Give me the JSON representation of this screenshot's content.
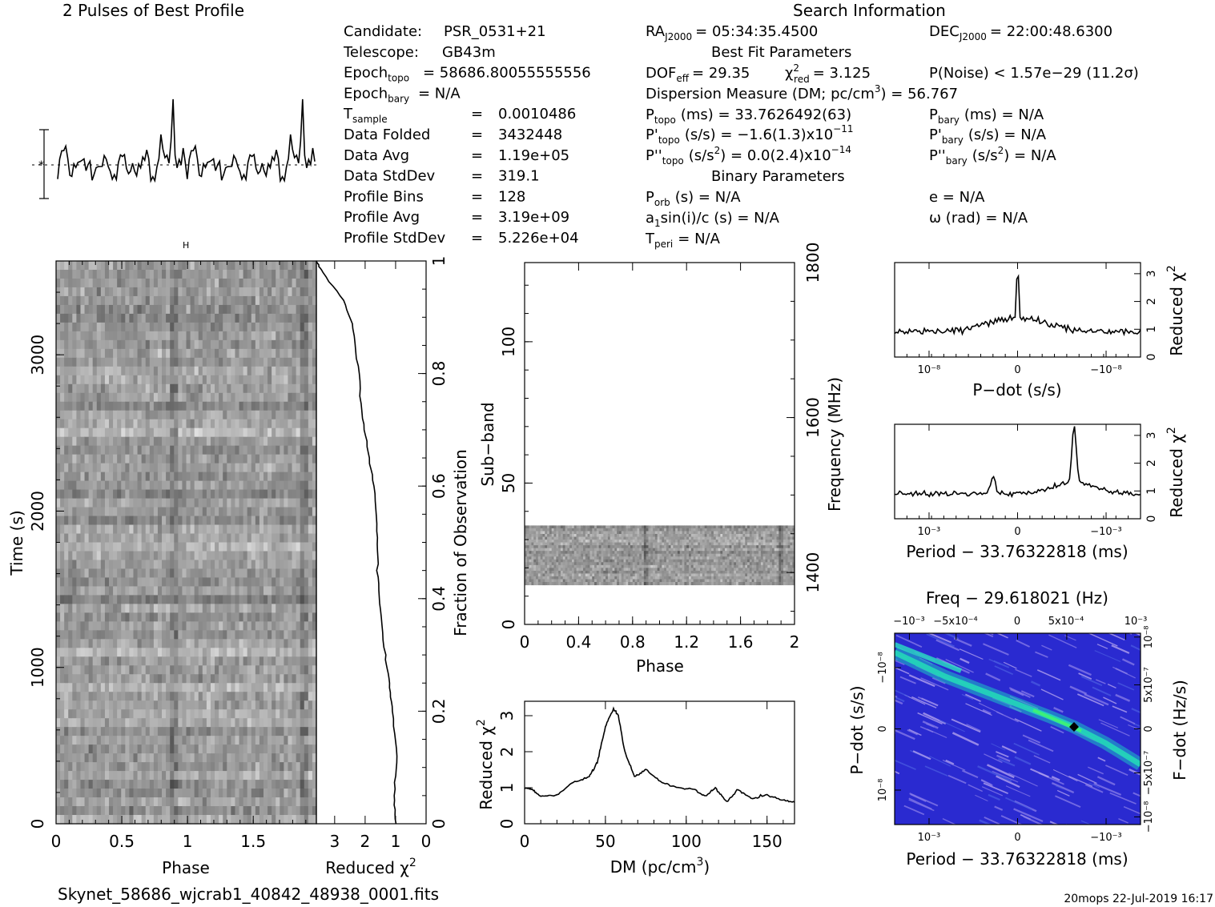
{
  "header": {
    "profile_title": "2 Pulses of Best Profile",
    "search_title": "Search Information",
    "footer_file": "Skynet_58686_wjcrab1_40842_48938_0001.fits",
    "footer_stamp": "20mops  22-Jul-2019 16:17"
  },
  "info_left": [
    {
      "label": "Candidate:",
      "sub": "",
      "value": "PSR_0531+21"
    },
    {
      "label": "Telescope:",
      "sub": "",
      "value": "GB43m"
    },
    {
      "label": "Epoch",
      "sub": "topo",
      "value": "= 58686.80055555556"
    },
    {
      "label": "Epoch",
      "sub": "bary",
      "value": "= N/A"
    },
    {
      "label": "T",
      "sub": "sample",
      "value": "0.0010486"
    },
    {
      "label": "Data Folded",
      "sub": "",
      "value": "3432448"
    },
    {
      "label": "Data Avg",
      "sub": "",
      "value": "1.19e+05"
    },
    {
      "label": "Data StdDev",
      "sub": "",
      "value": "319.1"
    },
    {
      "label": "Profile Bins",
      "sub": "",
      "value": "128"
    },
    {
      "label": "Profile Avg",
      "sub": "",
      "value": "3.19e+09"
    },
    {
      "label": "Profile StdDev",
      "sub": "",
      "value": "5.226e+04"
    }
  ],
  "info_mid": {
    "ra": "= 05:34:35.4500",
    "best_fit_title": "Best Fit Parameters",
    "dof": "= 29.35",
    "chi2": "= 3.125",
    "pnoise": "P(Noise) < 1.57e−29   (11.2σ)",
    "dm_line": "Dispersion Measure (DM; pc/cm",
    "dm_value": ") = 56.767",
    "ptopo": "(ms) =  33.7626492(63)",
    "pdot_topo": "(s/s) = −1.6(1.3)x10",
    "pdot_topo_exp": "−11",
    "pddot_topo": "(s/s",
    "pddot_topo_val": ") = 0.0(2.4)x10",
    "pddot_topo_exp": "−14",
    "binary_title": "Binary Parameters",
    "porb": "(s) = N/A",
    "asini": "sin(i)/c (s) = N/A",
    "tperi": "= N/A"
  },
  "info_right": {
    "dec": "= 22:00:48.6300",
    "pbary": "(ms) = N/A",
    "pdot_bary": "(s/s) = N/A",
    "pddot_bary": "(s/s",
    "pddot_bary_val": ") = N/A",
    "e": "e = N/A",
    "omega": "ω (rad) = N/A"
  },
  "chart_data": [
    {
      "type": "line",
      "title": "2 Pulses of Best Profile",
      "x": "phase 0-2 (two pulses)",
      "peaks_phase": [
        0.89,
        1.89
      ],
      "note": "single profile repeated twice"
    },
    {
      "type": "heatmap",
      "name": "time-phase",
      "xlabel": "Phase",
      "ylabel": "Time (s)",
      "xlim": [
        0,
        2
      ],
      "ylim": [
        0,
        3600
      ],
      "xticks": [
        "0",
        "0.5",
        "1",
        "1.5"
      ],
      "yticks": [
        "0",
        "1000",
        "2000",
        "3000"
      ]
    },
    {
      "type": "line",
      "name": "reduced-chi2-vs-fraction",
      "xlabel": "Reduced χ",
      "ylabel": "Fraction of Observation",
      "xticks": [
        "3",
        "2",
        "1",
        "0"
      ],
      "yticks": [
        "0",
        "0.2",
        "0.4",
        "0.6",
        "0.8",
        "1"
      ],
      "xlim": [
        3.6,
        0
      ],
      "ylim": [
        0,
        1
      ],
      "points": [
        [
          1,
          0.0
        ],
        [
          1.05,
          0.05
        ],
        [
          0.95,
          0.12
        ],
        [
          1.1,
          0.2
        ],
        [
          1.2,
          0.25
        ],
        [
          1.35,
          0.3
        ],
        [
          1.5,
          0.38
        ],
        [
          1.6,
          0.45
        ],
        [
          1.6,
          0.52
        ],
        [
          1.7,
          0.6
        ],
        [
          1.9,
          0.66
        ],
        [
          2.1,
          0.72
        ],
        [
          2.2,
          0.8
        ],
        [
          2.4,
          0.88
        ],
        [
          2.7,
          0.93
        ],
        [
          3.4,
          0.98
        ],
        [
          3.6,
          1.0
        ]
      ]
    },
    {
      "type": "heatmap",
      "name": "subband-phase",
      "xlabel": "Phase",
      "ylabel": "Sub-band",
      "y2label": "Frequency (MHz)",
      "xticks": [
        "0",
        "0.4",
        "0.8",
        "1.2",
        "1.6",
        "2"
      ],
      "yticks": [
        "0",
        "50",
        "100"
      ],
      "y2ticks": [
        "1400",
        "1600",
        "1800"
      ],
      "xlim": [
        0,
        2
      ],
      "ylim": [
        0,
        128
      ],
      "filled_subbands": [
        14,
        35
      ]
    },
    {
      "type": "line",
      "name": "reduced-chi2-vs-dm",
      "xlabel": "DM (pc/cm",
      "ylabel": "Reduced χ",
      "xticks": [
        "0",
        "50",
        "100",
        "150"
      ],
      "yticks": [
        "0",
        "1",
        "2",
        "3"
      ],
      "xlim": [
        0,
        167
      ],
      "ylim": [
        0,
        3.4
      ],
      "points": [
        [
          0,
          1.0
        ],
        [
          5,
          0.95
        ],
        [
          10,
          0.75
        ],
        [
          20,
          0.8
        ],
        [
          30,
          1.15
        ],
        [
          40,
          1.3
        ],
        [
          45,
          1.7
        ],
        [
          50,
          2.7
        ],
        [
          55,
          3.2
        ],
        [
          58,
          3.0
        ],
        [
          62,
          2.0
        ],
        [
          68,
          1.3
        ],
        [
          75,
          1.5
        ],
        [
          85,
          1.15
        ],
        [
          95,
          1.0
        ],
        [
          105,
          0.95
        ],
        [
          112,
          0.75
        ],
        [
          118,
          1.0
        ],
        [
          125,
          0.6
        ],
        [
          132,
          0.95
        ],
        [
          140,
          0.7
        ],
        [
          150,
          0.8
        ],
        [
          160,
          0.65
        ],
        [
          167,
          0.6
        ]
      ]
    },
    {
      "type": "line",
      "name": "reduced-chi2-vs-pdot",
      "xlabel": "P−dot (s/s)",
      "ylabel": "Reduced χ",
      "xticks": [
        "10⁻⁸",
        "0",
        "−10⁻⁸"
      ],
      "yticks": [
        "0",
        "1",
        "2",
        "3"
      ],
      "ylim": [
        0,
        3.4
      ],
      "peak_at": 0,
      "peak_value": 3.1
    },
    {
      "type": "line",
      "name": "reduced-chi2-vs-period",
      "xlabel": "Period − 33.76322818 (ms)",
      "ylabel": "Reduced χ",
      "xticks": [
        "10⁻³",
        "0",
        "−10⁻³"
      ],
      "yticks": [
        "0",
        "1",
        "2",
        "3"
      ],
      "ylim": [
        0,
        3.4
      ],
      "peak_value": 3.1
    },
    {
      "type": "heatmap",
      "name": "period-pdot",
      "title": "Freq − 29.618021 (Hz)",
      "xlabel": "Period − 33.76322818 (ms)",
      "ylabel": "P−dot (s/s)",
      "y2label": "F−dot (Hz/s)",
      "xticks": [
        "10⁻³",
        "0",
        "−10⁻³"
      ],
      "x2ticks": [
        "−10⁻³",
        "−5x10⁻⁴",
        "0",
        "5x10⁻⁴",
        "10⁻³"
      ],
      "yticks": [
        "−10⁻⁸",
        "0",
        "10⁻⁸"
      ],
      "y2ticks": [
        "10⁻⁸",
        "5x10⁻⁷",
        "0",
        "−5x10⁻⁷",
        "−10⁻⁸"
      ]
    }
  ]
}
